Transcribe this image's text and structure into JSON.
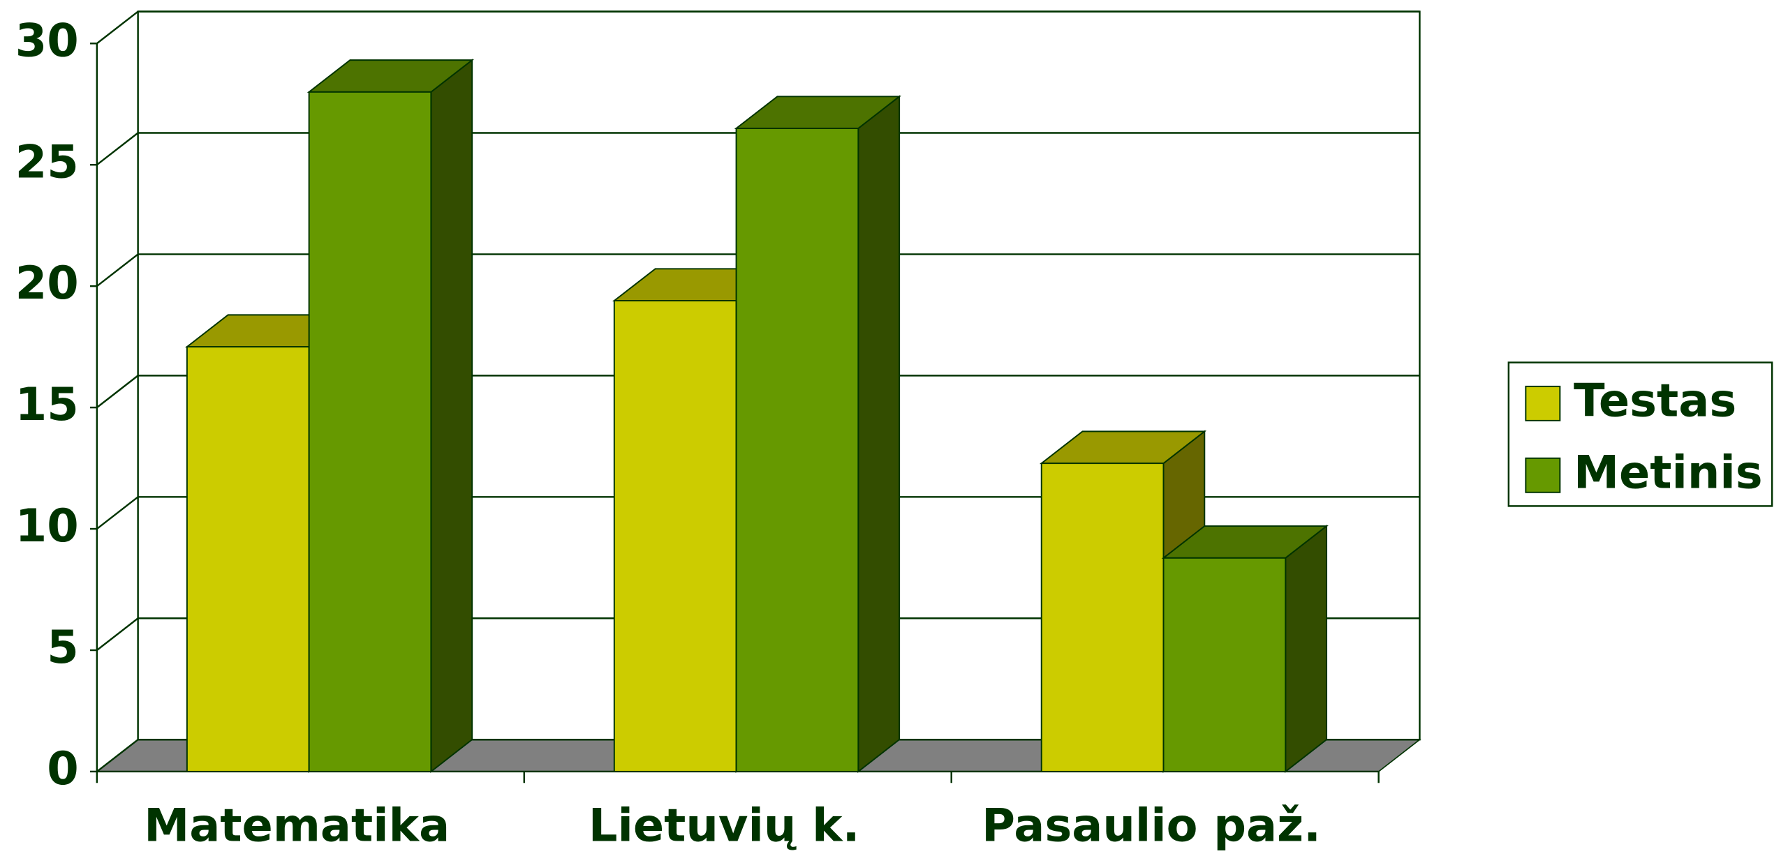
{
  "chart_data": {
    "type": "bar",
    "categories": [
      "Matematika",
      "Lietuvių k.",
      "Pasaulio paž."
    ],
    "series": [
      {
        "name": "Testas",
        "color": "#cccc00",
        "values": [
          17.5,
          19.4,
          12.7
        ]
      },
      {
        "name": "Metinis",
        "color": "#669900",
        "values": [
          28,
          26.5,
          8.8
        ]
      }
    ],
    "ylim": [
      0,
      30
    ],
    "yticks": [
      0,
      5,
      10,
      15,
      20,
      25,
      30
    ],
    "grid": true,
    "legend": "right"
  }
}
